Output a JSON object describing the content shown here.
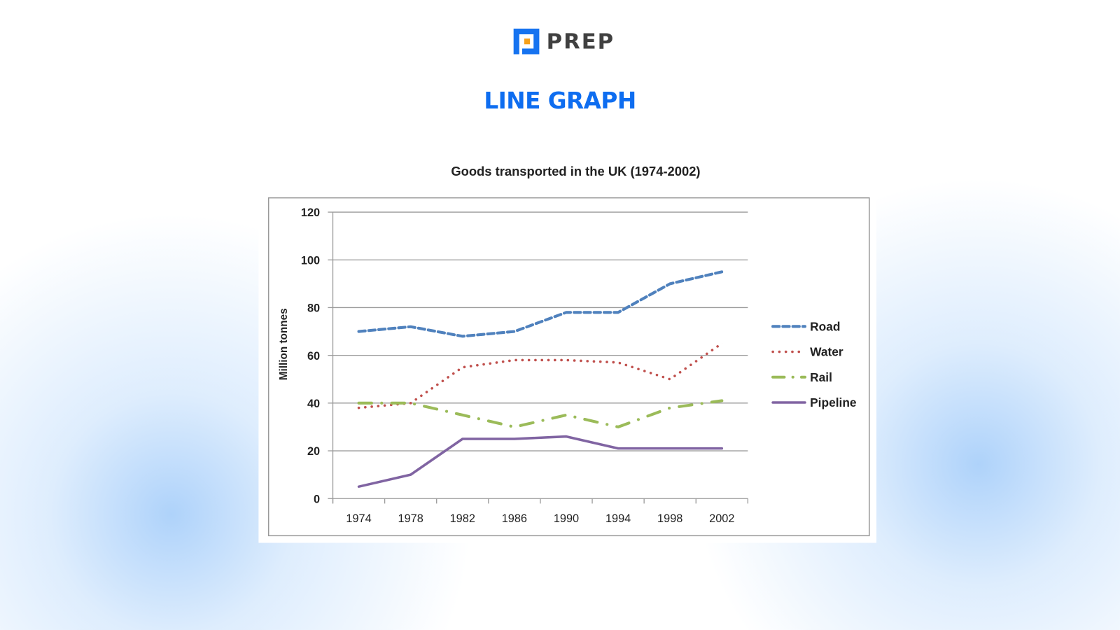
{
  "brand": {
    "name": "PREP",
    "logo_colors": {
      "blue": "#1673f0",
      "orange": "#f7a11a"
    }
  },
  "heading": "LINE GRAPH",
  "chart_data": {
    "type": "line",
    "title": "Goods transported in the UK (1974-2002)",
    "xlabel": "",
    "ylabel": "Million tonnes",
    "x": [
      "1974",
      "1978",
      "1982",
      "1986",
      "1990",
      "1994",
      "1998",
      "2002"
    ],
    "ylim": [
      0,
      120
    ],
    "yticks": [
      0,
      20,
      40,
      60,
      80,
      100,
      120
    ],
    "grid": true,
    "legend_position": "right",
    "series": [
      {
        "name": "Road",
        "values": [
          70,
          72,
          68,
          70,
          78,
          78,
          90,
          95
        ],
        "color": "#4f81bd",
        "style": "dashed"
      },
      {
        "name": "Water",
        "values": [
          38,
          40,
          55,
          58,
          58,
          57,
          50,
          65
        ],
        "color": "#c0504d",
        "style": "dotted"
      },
      {
        "name": "Rail",
        "values": [
          40,
          40,
          35,
          30,
          35,
          30,
          38,
          41
        ],
        "color": "#9bbb59",
        "style": "dash-dot"
      },
      {
        "name": "Pipeline",
        "values": [
          5,
          10,
          25,
          25,
          26,
          21,
          21,
          21
        ],
        "color": "#8064a2",
        "style": "solid"
      }
    ]
  }
}
